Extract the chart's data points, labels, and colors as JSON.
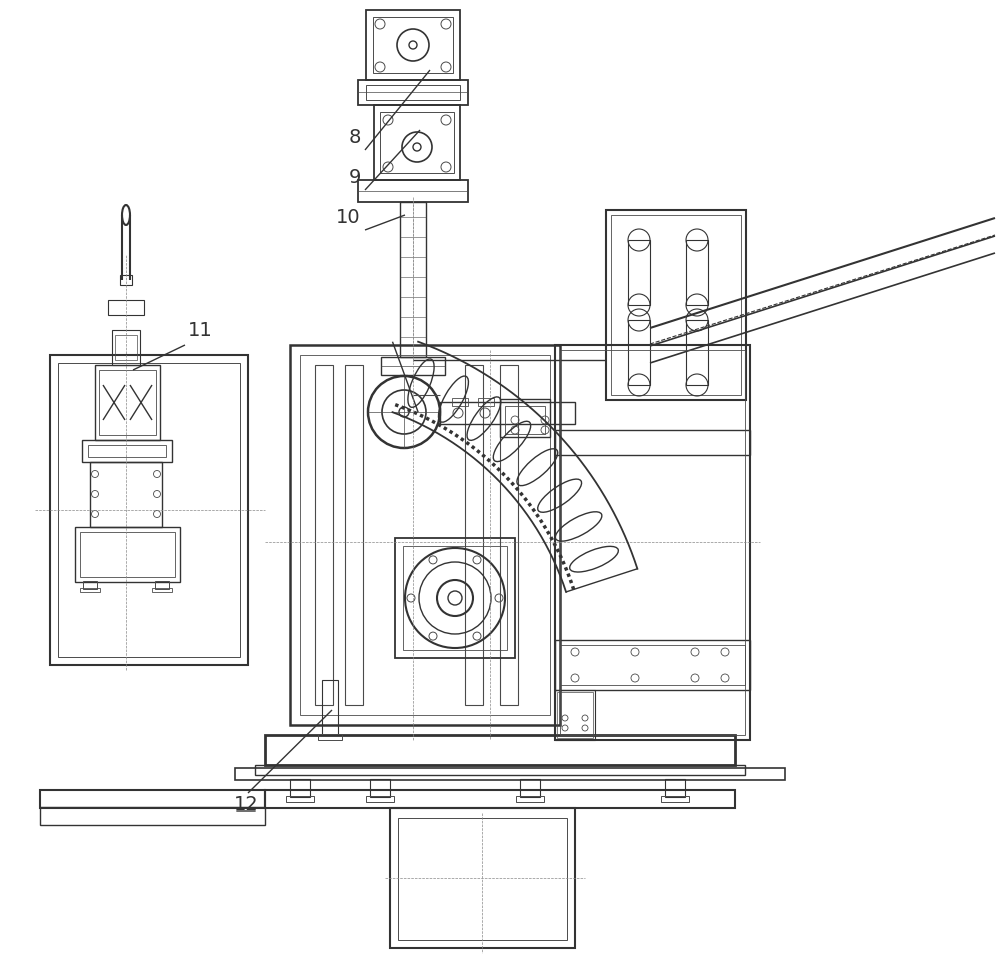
{
  "bg_color": "#ffffff",
  "lc": "#4a4a4a",
  "dk": "#333333",
  "lk": "#888888",
  "figsize": [
    10.0,
    9.56
  ],
  "dpi": 100
}
